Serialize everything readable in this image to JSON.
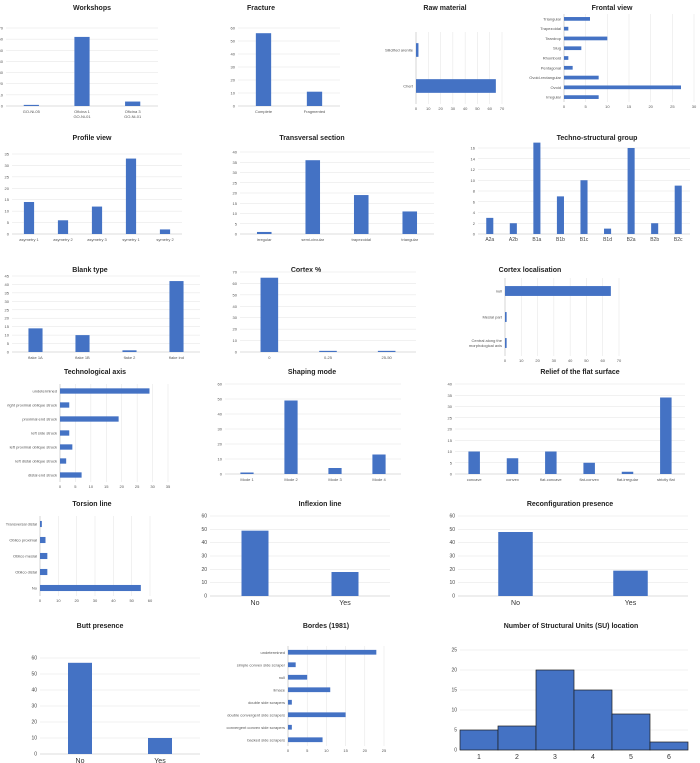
{
  "colors": {
    "bar": "#4472c4"
  },
  "chart_data": [
    {
      "type": "bar",
      "title": "Workshops",
      "categories": [
        "GO-Ni-05",
        "Oficina 1\nGO-Ni-01",
        "Oficina 3\nGO-Ni-01"
      ],
      "values": [
        1,
        62,
        4
      ],
      "yticks": [
        0,
        10,
        20,
        30,
        40,
        50,
        60,
        70
      ],
      "ylim": [
        0,
        70
      ],
      "grid": true
    },
    {
      "type": "bar",
      "title": "Fracture",
      "categories": [
        "Complete",
        "Fragmented"
      ],
      "values": [
        56,
        11
      ],
      "yticks": [
        0,
        10,
        20,
        30,
        40,
        50,
        60
      ],
      "ylim": [
        0,
        60
      ],
      "grid": true
    },
    {
      "type": "bar",
      "orientation": "horizontal",
      "title": "Raw material",
      "categories": [
        "Silicified arenite",
        "Chert"
      ],
      "values": [
        2,
        65
      ],
      "xticks": [
        0,
        10,
        20,
        30,
        40,
        50,
        60,
        70
      ],
      "xlim": [
        0,
        70
      ],
      "grid": true
    },
    {
      "type": "bar",
      "orientation": "horizontal",
      "title": "Frontal view",
      "categories": [
        "Triangular",
        "Trapezoidal",
        "Teardrop",
        "Slug",
        "Rhomboid",
        "Pentagonal",
        "Ovoid-rectangular",
        "Ovoid",
        "Irregular"
      ],
      "values": [
        6,
        1,
        10,
        4,
        1,
        2,
        8,
        27,
        8
      ],
      "xticks": [
        0,
        5,
        10,
        15,
        20,
        25,
        30
      ],
      "xlim": [
        0,
        30
      ],
      "grid": true
    },
    {
      "type": "bar",
      "title": "Profile view",
      "categories": [
        "asymetry 1",
        "asymetry 2",
        "asymetry 3",
        "symetry 1",
        "symetry 2"
      ],
      "values": [
        14,
        6,
        12,
        33,
        2
      ],
      "yticks": [
        0,
        5,
        10,
        15,
        20,
        25,
        30,
        35
      ],
      "ylim": [
        0,
        35
      ],
      "grid": true
    },
    {
      "type": "bar",
      "title": "Transversal section",
      "categories": [
        "irregular",
        "semi-circular",
        "trapezoidal",
        "triangular"
      ],
      "values": [
        1,
        36,
        19,
        11
      ],
      "yticks": [
        0,
        5,
        10,
        15,
        20,
        25,
        30,
        35,
        40
      ],
      "ylim": [
        0,
        40
      ],
      "grid": true
    },
    {
      "type": "bar",
      "title": "Techno-structural group",
      "categories": [
        "A2a",
        "A2b",
        "B1a",
        "B1b",
        "B1c",
        "B1d",
        "B2a",
        "B2b",
        "B2c"
      ],
      "values": [
        3,
        2,
        17,
        7,
        10,
        1,
        16,
        2,
        9
      ],
      "yticks": [
        0,
        2,
        4,
        6,
        8,
        10,
        12,
        14,
        16
      ],
      "ylim": [
        0,
        16
      ],
      "grid": true
    },
    {
      "type": "bar",
      "title": "Blank type",
      "categories": [
        "flake 1A",
        "flake 1B",
        "flake 2",
        "flake ind"
      ],
      "values": [
        14,
        10,
        1,
        42
      ],
      "yticks": [
        0,
        5,
        10,
        15,
        20,
        25,
        30,
        35,
        40,
        45
      ],
      "ylim": [
        0,
        45
      ],
      "grid": true
    },
    {
      "type": "bar",
      "title": "Cortex %",
      "categories": [
        "0",
        "0-25",
        "25-50"
      ],
      "values": [
        65,
        1,
        1
      ],
      "yticks": [
        0,
        10,
        20,
        30,
        40,
        50,
        60,
        70
      ],
      "ylim": [
        0,
        70
      ],
      "grid": true
    },
    {
      "type": "bar",
      "orientation": "horizontal",
      "title": "Cortex localisation",
      "categories": [
        "null",
        "Mesial part",
        "Central along the\nmorphological axis"
      ],
      "values": [
        65,
        1,
        1
      ],
      "xticks": [
        0,
        10,
        20,
        30,
        40,
        50,
        60,
        70
      ],
      "xlim": [
        0,
        70
      ],
      "grid": true
    },
    {
      "type": "bar",
      "orientation": "horizontal",
      "title": "Technological axis",
      "categories": [
        "undetermined",
        "right proximal oblique struck",
        "proximal end struck",
        "left side struck",
        "left proximal oblique struck",
        "left distal oblique struck",
        "distal end struck"
      ],
      "values": [
        29,
        3,
        19,
        3,
        4,
        2,
        7
      ],
      "xticks": [
        0,
        5,
        10,
        15,
        20,
        25,
        30,
        35
      ],
      "xlim": [
        0,
        35
      ],
      "grid": true
    },
    {
      "type": "bar",
      "title": "Shaping mode",
      "categories": [
        "Mode 1",
        "Mode 2",
        "Mode 3",
        "Mode 4"
      ],
      "values": [
        1,
        49,
        4,
        13
      ],
      "yticks": [
        0,
        10,
        20,
        30,
        40,
        50,
        60
      ],
      "ylim": [
        0,
        60
      ],
      "grid": true
    },
    {
      "type": "bar",
      "title": "Relief of the flat surface",
      "categories": [
        "concave",
        "convex",
        "flat-concave",
        "flat-convex",
        "flat-irregular",
        "strictly flat"
      ],
      "values": [
        10,
        7,
        10,
        5,
        1,
        34
      ],
      "yticks": [
        0,
        5,
        10,
        15,
        20,
        25,
        30,
        35,
        40
      ],
      "ylim": [
        0,
        40
      ],
      "grid": true
    },
    {
      "type": "bar",
      "orientation": "horizontal",
      "title": "Torsion line",
      "categories": [
        "Transversal distal",
        "Oblico proximal",
        "Oblico mesial",
        "Oblico distal",
        "No"
      ],
      "values": [
        1,
        3,
        4,
        4,
        55
      ],
      "xticks": [
        0,
        10,
        20,
        30,
        40,
        50,
        60
      ],
      "xlim": [
        0,
        60
      ],
      "grid": true
    },
    {
      "type": "bar",
      "title": "Inflexion line",
      "categories": [
        "No",
        "Yes"
      ],
      "values": [
        49,
        18
      ],
      "yticks": [
        0,
        10,
        20,
        30,
        40,
        50,
        60
      ],
      "ylim": [
        0,
        60
      ],
      "grid": true
    },
    {
      "type": "bar",
      "title": "Reconfiguration presence",
      "categories": [
        "No",
        "Yes"
      ],
      "values": [
        48,
        19
      ],
      "yticks": [
        0,
        10,
        20,
        30,
        40,
        50,
        60
      ],
      "ylim": [
        0,
        60
      ],
      "grid": true
    },
    {
      "type": "bar",
      "title": "Butt presence",
      "categories": [
        "No",
        "Yes"
      ],
      "values": [
        57,
        10
      ],
      "yticks": [
        0,
        10,
        20,
        30,
        40,
        50,
        60
      ],
      "ylim": [
        0,
        60
      ],
      "grid": true
    },
    {
      "type": "bar",
      "orientation": "horizontal",
      "title": "Bordes (1981)",
      "categories": [
        "undetermined",
        "simple convex side scraper",
        "null",
        "limace",
        "double side scrapers",
        "double convergent side scrapers",
        "convergent convex side scrapers",
        "backed side scrapers"
      ],
      "values": [
        23,
        2,
        5,
        11,
        1,
        15,
        1,
        9
      ],
      "xticks": [
        0,
        5,
        10,
        15,
        20,
        25
      ],
      "xlim": [
        0,
        25
      ],
      "grid": true
    },
    {
      "type": "bar",
      "title": "Number of Structural Units (SU) location",
      "categories": [
        "1",
        "2",
        "3",
        "4",
        "5",
        "6"
      ],
      "values": [
        5,
        6,
        20,
        15,
        9,
        2
      ],
      "yticks": [
        0,
        5,
        10,
        15,
        20,
        25
      ],
      "ylim": [
        0,
        25
      ],
      "grid": true,
      "gap": false
    }
  ]
}
